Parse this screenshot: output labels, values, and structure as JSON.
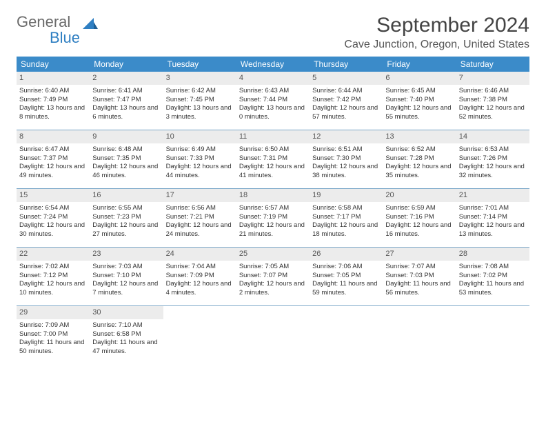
{
  "brand": {
    "line1": "General",
    "line2": "Blue"
  },
  "title": "September 2024",
  "location": "Cave Junction, Oregon, United States",
  "colors": {
    "header_bg": "#3b8bc9",
    "header_text": "#ffffff",
    "daynum_bg": "#ececec",
    "row_divider": "#7ba8c9",
    "logo_gray": "#6b6b6b",
    "logo_blue": "#2f7fc2"
  },
  "days_of_week": [
    "Sunday",
    "Monday",
    "Tuesday",
    "Wednesday",
    "Thursday",
    "Friday",
    "Saturday"
  ],
  "weeks": [
    [
      {
        "num": "1",
        "sunrise": "Sunrise: 6:40 AM",
        "sunset": "Sunset: 7:49 PM",
        "daylight": "Daylight: 13 hours and 8 minutes."
      },
      {
        "num": "2",
        "sunrise": "Sunrise: 6:41 AM",
        "sunset": "Sunset: 7:47 PM",
        "daylight": "Daylight: 13 hours and 6 minutes."
      },
      {
        "num": "3",
        "sunrise": "Sunrise: 6:42 AM",
        "sunset": "Sunset: 7:45 PM",
        "daylight": "Daylight: 13 hours and 3 minutes."
      },
      {
        "num": "4",
        "sunrise": "Sunrise: 6:43 AM",
        "sunset": "Sunset: 7:44 PM",
        "daylight": "Daylight: 13 hours and 0 minutes."
      },
      {
        "num": "5",
        "sunrise": "Sunrise: 6:44 AM",
        "sunset": "Sunset: 7:42 PM",
        "daylight": "Daylight: 12 hours and 57 minutes."
      },
      {
        "num": "6",
        "sunrise": "Sunrise: 6:45 AM",
        "sunset": "Sunset: 7:40 PM",
        "daylight": "Daylight: 12 hours and 55 minutes."
      },
      {
        "num": "7",
        "sunrise": "Sunrise: 6:46 AM",
        "sunset": "Sunset: 7:38 PM",
        "daylight": "Daylight: 12 hours and 52 minutes."
      }
    ],
    [
      {
        "num": "8",
        "sunrise": "Sunrise: 6:47 AM",
        "sunset": "Sunset: 7:37 PM",
        "daylight": "Daylight: 12 hours and 49 minutes."
      },
      {
        "num": "9",
        "sunrise": "Sunrise: 6:48 AM",
        "sunset": "Sunset: 7:35 PM",
        "daylight": "Daylight: 12 hours and 46 minutes."
      },
      {
        "num": "10",
        "sunrise": "Sunrise: 6:49 AM",
        "sunset": "Sunset: 7:33 PM",
        "daylight": "Daylight: 12 hours and 44 minutes."
      },
      {
        "num": "11",
        "sunrise": "Sunrise: 6:50 AM",
        "sunset": "Sunset: 7:31 PM",
        "daylight": "Daylight: 12 hours and 41 minutes."
      },
      {
        "num": "12",
        "sunrise": "Sunrise: 6:51 AM",
        "sunset": "Sunset: 7:30 PM",
        "daylight": "Daylight: 12 hours and 38 minutes."
      },
      {
        "num": "13",
        "sunrise": "Sunrise: 6:52 AM",
        "sunset": "Sunset: 7:28 PM",
        "daylight": "Daylight: 12 hours and 35 minutes."
      },
      {
        "num": "14",
        "sunrise": "Sunrise: 6:53 AM",
        "sunset": "Sunset: 7:26 PM",
        "daylight": "Daylight: 12 hours and 32 minutes."
      }
    ],
    [
      {
        "num": "15",
        "sunrise": "Sunrise: 6:54 AM",
        "sunset": "Sunset: 7:24 PM",
        "daylight": "Daylight: 12 hours and 30 minutes."
      },
      {
        "num": "16",
        "sunrise": "Sunrise: 6:55 AM",
        "sunset": "Sunset: 7:23 PM",
        "daylight": "Daylight: 12 hours and 27 minutes."
      },
      {
        "num": "17",
        "sunrise": "Sunrise: 6:56 AM",
        "sunset": "Sunset: 7:21 PM",
        "daylight": "Daylight: 12 hours and 24 minutes."
      },
      {
        "num": "18",
        "sunrise": "Sunrise: 6:57 AM",
        "sunset": "Sunset: 7:19 PM",
        "daylight": "Daylight: 12 hours and 21 minutes."
      },
      {
        "num": "19",
        "sunrise": "Sunrise: 6:58 AM",
        "sunset": "Sunset: 7:17 PM",
        "daylight": "Daylight: 12 hours and 18 minutes."
      },
      {
        "num": "20",
        "sunrise": "Sunrise: 6:59 AM",
        "sunset": "Sunset: 7:16 PM",
        "daylight": "Daylight: 12 hours and 16 minutes."
      },
      {
        "num": "21",
        "sunrise": "Sunrise: 7:01 AM",
        "sunset": "Sunset: 7:14 PM",
        "daylight": "Daylight: 12 hours and 13 minutes."
      }
    ],
    [
      {
        "num": "22",
        "sunrise": "Sunrise: 7:02 AM",
        "sunset": "Sunset: 7:12 PM",
        "daylight": "Daylight: 12 hours and 10 minutes."
      },
      {
        "num": "23",
        "sunrise": "Sunrise: 7:03 AM",
        "sunset": "Sunset: 7:10 PM",
        "daylight": "Daylight: 12 hours and 7 minutes."
      },
      {
        "num": "24",
        "sunrise": "Sunrise: 7:04 AM",
        "sunset": "Sunset: 7:09 PM",
        "daylight": "Daylight: 12 hours and 4 minutes."
      },
      {
        "num": "25",
        "sunrise": "Sunrise: 7:05 AM",
        "sunset": "Sunset: 7:07 PM",
        "daylight": "Daylight: 12 hours and 2 minutes."
      },
      {
        "num": "26",
        "sunrise": "Sunrise: 7:06 AM",
        "sunset": "Sunset: 7:05 PM",
        "daylight": "Daylight: 11 hours and 59 minutes."
      },
      {
        "num": "27",
        "sunrise": "Sunrise: 7:07 AM",
        "sunset": "Sunset: 7:03 PM",
        "daylight": "Daylight: 11 hours and 56 minutes."
      },
      {
        "num": "28",
        "sunrise": "Sunrise: 7:08 AM",
        "sunset": "Sunset: 7:02 PM",
        "daylight": "Daylight: 11 hours and 53 minutes."
      }
    ],
    [
      {
        "num": "29",
        "sunrise": "Sunrise: 7:09 AM",
        "sunset": "Sunset: 7:00 PM",
        "daylight": "Daylight: 11 hours and 50 minutes."
      },
      {
        "num": "30",
        "sunrise": "Sunrise: 7:10 AM",
        "sunset": "Sunset: 6:58 PM",
        "daylight": "Daylight: 11 hours and 47 minutes."
      },
      null,
      null,
      null,
      null,
      null
    ]
  ]
}
